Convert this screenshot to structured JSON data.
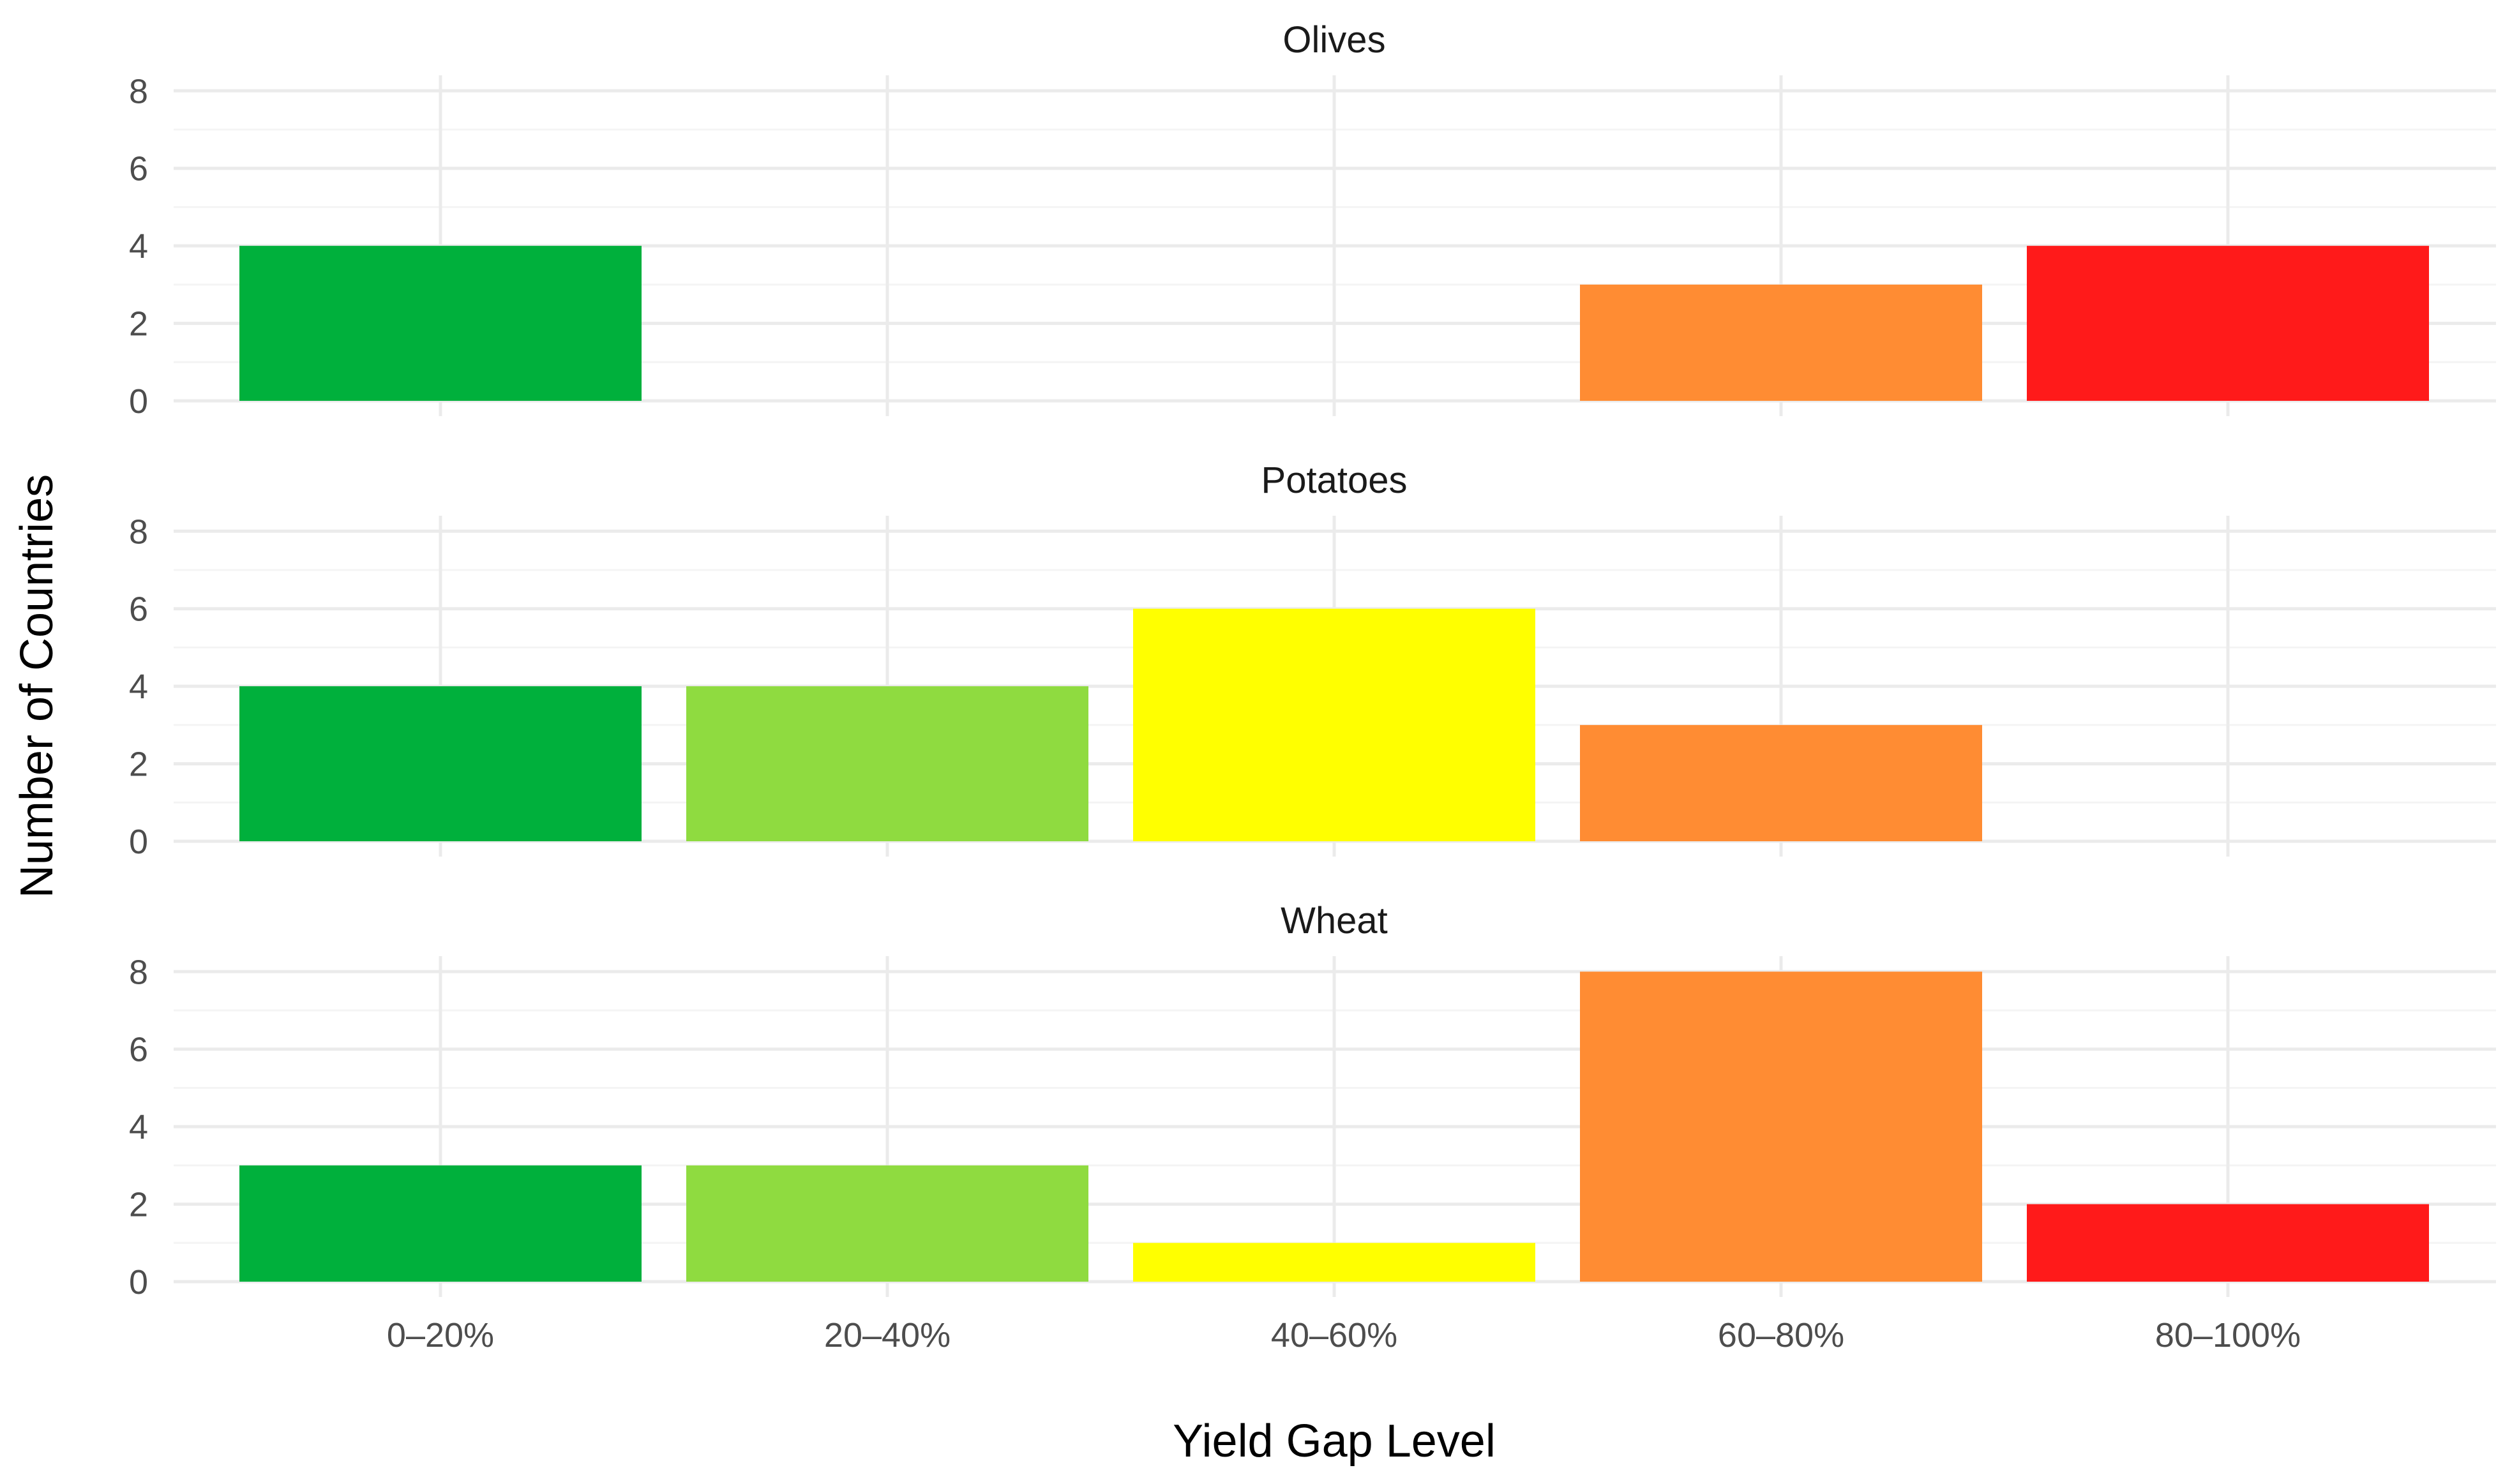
{
  "chart_data": {
    "type": "bar",
    "xlabel": "Yield Gap Level",
    "ylabel": "Number of Countries",
    "categories": [
      "0–20%",
      "20–40%",
      "40–60%",
      "60–80%",
      "80–100%"
    ],
    "category_colors": [
      "#00B03C",
      "#8FDB40",
      "#FFFF00",
      "#FF8C33",
      "#FF1A1A"
    ],
    "ylim": [
      0,
      8.4
    ],
    "yticks": [
      0,
      2,
      4,
      6,
      8
    ],
    "grid": true,
    "legend": "none",
    "facets": [
      {
        "title": "Olives",
        "values": [
          4,
          0,
          0,
          3,
          4
        ]
      },
      {
        "title": "Potatoes",
        "values": [
          4,
          4,
          6,
          3,
          0
        ]
      },
      {
        "title": "Wheat",
        "values": [
          3,
          3,
          1,
          8,
          2
        ]
      }
    ]
  }
}
